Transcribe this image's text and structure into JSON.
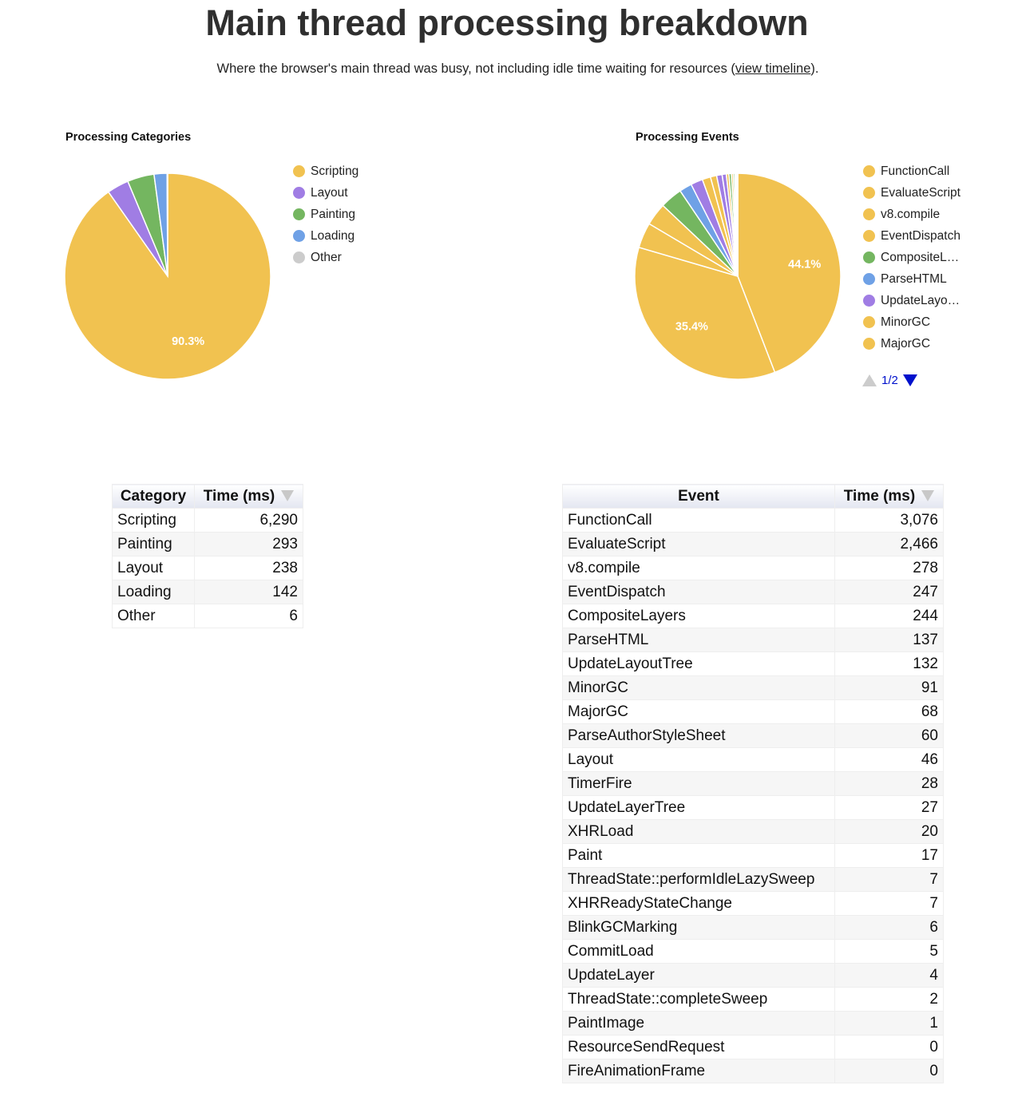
{
  "header": {
    "title": "Main thread processing breakdown",
    "subtitle_before": "Where the browser's main thread was busy, not including idle time waiting for resources (",
    "subtitle_link": "view timeline",
    "subtitle_after": ")."
  },
  "chart_data": [
    {
      "type": "pie",
      "title": "Processing Categories",
      "categories": [
        "Scripting",
        "Layout",
        "Painting",
        "Loading",
        "Other"
      ],
      "values": [
        6290,
        238,
        293,
        142,
        6
      ],
      "colors": [
        "#f1c250",
        "#a07de4",
        "#74b660",
        "#6fa1e6",
        "#cccccc"
      ],
      "slice_labels": [
        {
          "category": "Scripting",
          "text": "90.3%"
        }
      ],
      "legend_position": "right"
    },
    {
      "type": "pie",
      "title": "Processing Events",
      "categories": [
        "FunctionCall",
        "EvaluateScript",
        "v8.compile",
        "EventDispatch",
        "CompositeLayers",
        "ParseHTML",
        "UpdateLayoutTree",
        "MinorGC",
        "MajorGC",
        "ParseAuthorStyleSheet",
        "Layout",
        "TimerFire",
        "UpdateLayerTree",
        "XHRLoad",
        "Paint",
        "ThreadState::performIdleLazySweep",
        "XHRReadyStateChange",
        "BlinkGCMarking",
        "CommitLoad",
        "UpdateLayer",
        "ThreadState::completeSweep",
        "PaintImage",
        "ResourceSendRequest",
        "FireAnimationFrame"
      ],
      "values": [
        3076,
        2466,
        278,
        247,
        244,
        137,
        132,
        91,
        68,
        60,
        46,
        28,
        27,
        20,
        17,
        7,
        7,
        6,
        5,
        4,
        2,
        1,
        0,
        0
      ],
      "colors": [
        "#f1c250",
        "#f1c250",
        "#f1c250",
        "#f1c250",
        "#74b660",
        "#6fa1e6",
        "#a07de4",
        "#f1c250",
        "#f1c250",
        "#a07de4",
        "#a07de4",
        "#f1c250",
        "#74b660",
        "#f1c250",
        "#74b660",
        "#f1c250",
        "#f1c250",
        "#f1c250",
        "#f1c250",
        "#74b660",
        "#f1c250",
        "#74b660",
        "#6fa1e6",
        "#f1c250"
      ],
      "slice_labels": [
        {
          "category": "FunctionCall",
          "text": "44.1%"
        },
        {
          "category": "EvaluateScript",
          "text": "35.4%"
        }
      ],
      "legend_items": [
        "FunctionCall",
        "EvaluateScript",
        "v8.compile",
        "EventDispatch",
        "CompositeL…",
        "ParseHTML",
        "UpdateLayo…",
        "MinorGC",
        "MajorGC"
      ],
      "legend_position": "right",
      "legend_page": "1/2"
    },
    {
      "type": "table",
      "columns": [
        "Category",
        "Time (ms)"
      ],
      "rows": [
        [
          "Scripting",
          "6,290"
        ],
        [
          "Painting",
          "293"
        ],
        [
          "Layout",
          "238"
        ],
        [
          "Loading",
          "142"
        ],
        [
          "Other",
          "6"
        ]
      ]
    },
    {
      "type": "table",
      "columns": [
        "Event",
        "Time (ms)"
      ],
      "rows": [
        [
          "FunctionCall",
          "3,076"
        ],
        [
          "EvaluateScript",
          "2,466"
        ],
        [
          "v8.compile",
          "278"
        ],
        [
          "EventDispatch",
          "247"
        ],
        [
          "CompositeLayers",
          "244"
        ],
        [
          "ParseHTML",
          "137"
        ],
        [
          "UpdateLayoutTree",
          "132"
        ],
        [
          "MinorGC",
          "91"
        ],
        [
          "MajorGC",
          "68"
        ],
        [
          "ParseAuthorStyleSheet",
          "60"
        ],
        [
          "Layout",
          "46"
        ],
        [
          "TimerFire",
          "28"
        ],
        [
          "UpdateLayerTree",
          "27"
        ],
        [
          "XHRLoad",
          "20"
        ],
        [
          "Paint",
          "17"
        ],
        [
          "ThreadState::performIdleLazySweep",
          "7"
        ],
        [
          "XHRReadyStateChange",
          "7"
        ],
        [
          "BlinkGCMarking",
          "6"
        ],
        [
          "CommitLoad",
          "5"
        ],
        [
          "UpdateLayer",
          "4"
        ],
        [
          "ThreadState::completeSweep",
          "2"
        ],
        [
          "PaintImage",
          "1"
        ],
        [
          "ResourceSendRequest",
          "0"
        ],
        [
          "FireAnimationFrame",
          "0"
        ]
      ]
    }
  ]
}
